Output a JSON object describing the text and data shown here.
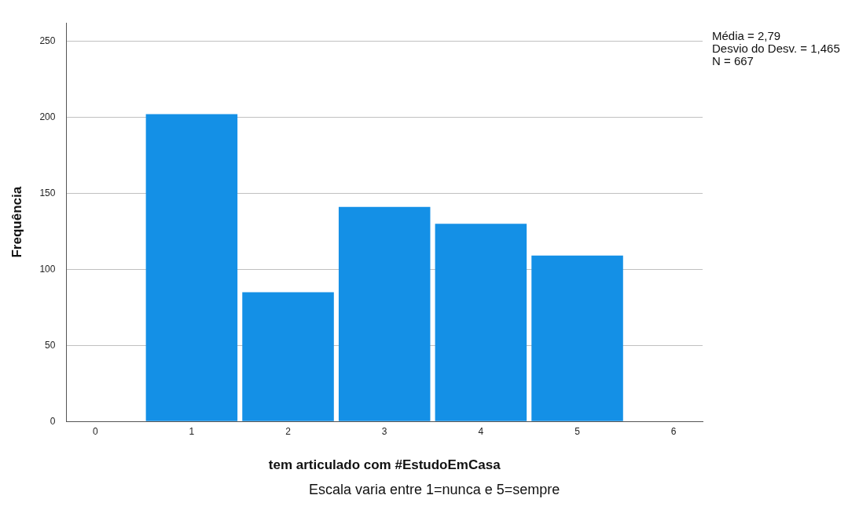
{
  "chart_data": {
    "type": "histogram",
    "xlabel": "tem articulado com #EstudoEmCasa",
    "ylabel": "Frequência",
    "bins": [
      0.5,
      1.5,
      2.5,
      3.5,
      4.5,
      5.5
    ],
    "values": [
      202,
      85,
      141,
      130,
      109
    ],
    "color": "#1490e6",
    "xlim": [
      -0.3,
      6.3
    ],
    "xticks": [
      0,
      1,
      2,
      3,
      4,
      5,
      6
    ],
    "ylim": [
      0,
      262
    ],
    "yticks": [
      0,
      50,
      100,
      150,
      200,
      250
    ],
    "grid": "y",
    "legend": false,
    "annotations": [
      "Média = 2,79",
      "Desvio do Desv. = 1,465",
      "N = 667",
      "Escala varia entre 1=nunca e 5=sempre"
    ]
  }
}
